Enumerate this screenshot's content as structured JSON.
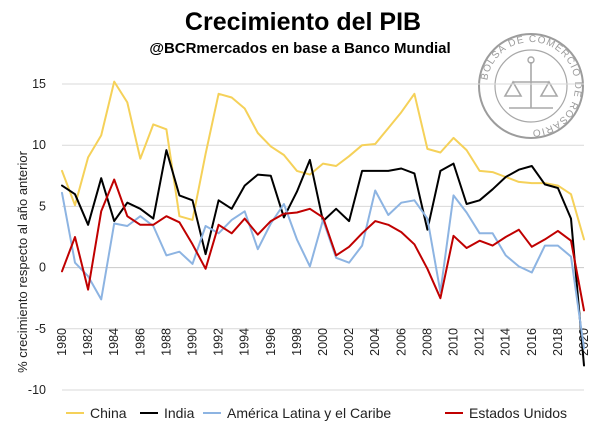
{
  "chart_data": {
    "type": "line",
    "title": "Crecimiento del PIB",
    "subtitle": "@BCRmercados en base a Banco Mundial",
    "xlabel": "",
    "ylabel": "% crecimiento respecto al año anterior",
    "ylim": [
      -10,
      15
    ],
    "yticks": [
      -10,
      -5,
      0,
      5,
      10,
      15
    ],
    "xticks": [
      1980,
      1982,
      1984,
      1986,
      1988,
      1990,
      1992,
      1994,
      1996,
      1998,
      2000,
      2002,
      2004,
      2006,
      2008,
      2010,
      2012,
      2014,
      2016,
      2018,
      2020
    ],
    "x": [
      1980,
      1981,
      1982,
      1983,
      1984,
      1985,
      1986,
      1987,
      1988,
      1989,
      1990,
      1991,
      1992,
      1993,
      1994,
      1995,
      1996,
      1997,
      1998,
      1999,
      2000,
      2001,
      2002,
      2003,
      2004,
      2005,
      2006,
      2007,
      2008,
      2009,
      2010,
      2011,
      2012,
      2013,
      2014,
      2015,
      2016,
      2017,
      2018,
      2019,
      2020
    ],
    "grid": true,
    "legend_position": "bottom",
    "series": [
      {
        "name": "China",
        "color": "#f5d159",
        "values": [
          7.9,
          5.1,
          9.0,
          10.8,
          15.2,
          13.5,
          8.9,
          11.7,
          11.3,
          4.2,
          3.9,
          9.3,
          14.2,
          13.9,
          13.0,
          11.0,
          9.9,
          9.2,
          7.9,
          7.6,
          8.5,
          8.3,
          9.1,
          10.0,
          10.1,
          11.4,
          12.7,
          14.2,
          9.7,
          9.4,
          10.6,
          9.6,
          7.9,
          7.8,
          7.4,
          7.0,
          6.9,
          6.9,
          6.7,
          6.0,
          2.3
        ]
      },
      {
        "name": "India",
        "color": "#000000",
        "values": [
          6.7,
          6.0,
          3.5,
          7.3,
          3.8,
          5.3,
          4.8,
          4.0,
          9.6,
          5.9,
          5.5,
          1.1,
          5.5,
          4.8,
          6.7,
          7.6,
          7.5,
          4.1,
          6.2,
          8.8,
          3.8,
          4.8,
          3.8,
          7.9,
          7.9,
          7.9,
          8.1,
          7.7,
          3.1,
          7.9,
          8.5,
          5.2,
          5.5,
          6.4,
          7.4,
          8.0,
          8.3,
          6.8,
          6.5,
          4.0,
          -8.0
        ]
      },
      {
        "name": "América Latina y el Caribe",
        "color": "#8db4e2",
        "values": [
          6.1,
          0.4,
          -0.7,
          -2.6,
          3.6,
          3.4,
          4.2,
          3.4,
          1.0,
          1.3,
          0.3,
          3.4,
          2.8,
          3.9,
          4.6,
          1.5,
          3.6,
          5.2,
          2.3,
          0.1,
          3.9,
          0.8,
          0.4,
          1.8,
          6.3,
          4.3,
          5.3,
          5.5,
          4.0,
          -2.0,
          5.9,
          4.5,
          2.8,
          2.8,
          1.0,
          0.1,
          -0.4,
          1.8,
          1.8,
          0.9,
          -6.6
        ]
      },
      {
        "name": "Estados Unidos",
        "color": "#c00000",
        "values": [
          -0.3,
          2.5,
          -1.8,
          4.6,
          7.2,
          4.2,
          3.5,
          3.5,
          4.2,
          3.7,
          1.9,
          -0.1,
          3.5,
          2.8,
          4.0,
          2.7,
          3.8,
          4.4,
          4.5,
          4.8,
          4.1,
          1.0,
          1.7,
          2.8,
          3.8,
          3.5,
          2.9,
          1.9,
          -0.1,
          -2.5,
          2.6,
          1.6,
          2.2,
          1.8,
          2.5,
          3.1,
          1.7,
          2.3,
          3.0,
          2.2,
          -3.5
        ]
      }
    ]
  },
  "watermark": {
    "text": "BOLSA DE COMERCIO DE ROSARIO"
  }
}
